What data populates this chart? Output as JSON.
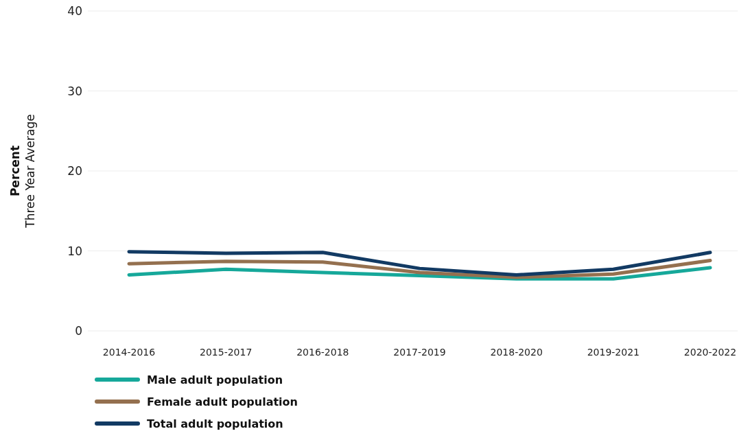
{
  "chart_data": {
    "type": "line",
    "ylabel": "Percent\nThree Year Average",
    "categories": [
      "2014-2016",
      "2015-2017",
      "2016-2018",
      "2017-2019",
      "2018-2020",
      "2019-2021",
      "2020-2022"
    ],
    "series": [
      {
        "name": "Male adult population",
        "color": "#16a89a",
        "values": [
          7.0,
          7.7,
          7.3,
          6.9,
          6.5,
          6.5,
          7.9
        ]
      },
      {
        "name": "Female adult population",
        "color": "#94704f",
        "values": [
          8.4,
          8.7,
          8.6,
          7.3,
          6.7,
          7.1,
          8.8
        ]
      },
      {
        "name": "Total adult population",
        "color": "#123a63",
        "values": [
          9.9,
          9.7,
          9.8,
          7.8,
          7.0,
          7.7,
          9.8
        ]
      }
    ],
    "ylim": [
      0,
      40
    ],
    "yticks": [
      0,
      10,
      20,
      30,
      40
    ],
    "grid": "y",
    "legend": "bottom left",
    "marker": "none",
    "line_style": "solid"
  }
}
